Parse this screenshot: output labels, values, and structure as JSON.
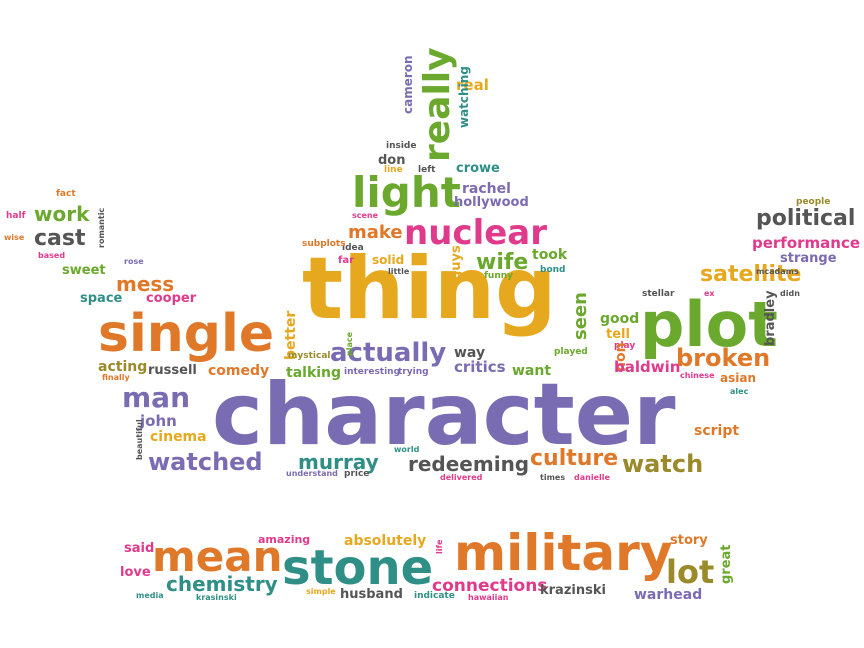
{
  "palette": {
    "purple": "#7a6cb2",
    "orange": "#e0782a",
    "green": "#6aa82e",
    "gold": "#e6a81e",
    "pink": "#e03a8c",
    "teal": "#2f8f86",
    "olive": "#9a8a2a",
    "grey": "#555555"
  },
  "words": [
    {
      "text": "character",
      "color": "purple"
    },
    {
      "text": "thing",
      "color": "gold"
    },
    {
      "text": "plot",
      "color": "green"
    },
    {
      "text": "single",
      "color": "orange"
    },
    {
      "text": "military",
      "color": "orange"
    },
    {
      "text": "stone",
      "color": "teal"
    },
    {
      "text": "mean",
      "color": "orange"
    },
    {
      "text": "light",
      "color": "green"
    },
    {
      "text": "nuclear",
      "color": "pink"
    },
    {
      "text": "really",
      "color": "green"
    },
    {
      "text": "political",
      "color": "grey"
    },
    {
      "text": "satellite",
      "color": "gold"
    },
    {
      "text": "performance",
      "color": "pink"
    },
    {
      "text": "broken",
      "color": "orange"
    },
    {
      "text": "actually",
      "color": "purple"
    },
    {
      "text": "watched",
      "color": "purple"
    },
    {
      "text": "watch",
      "color": "olive"
    },
    {
      "text": "culture",
      "color": "orange"
    },
    {
      "text": "redeeming",
      "color": "grey"
    },
    {
      "text": "murray",
      "color": "teal"
    },
    {
      "text": "man",
      "color": "purple"
    },
    {
      "text": "lot",
      "color": "olive"
    },
    {
      "text": "chemistry",
      "color": "teal"
    },
    {
      "text": "connections",
      "color": "pink"
    },
    {
      "text": "wife",
      "color": "green"
    },
    {
      "text": "make",
      "color": "orange"
    },
    {
      "text": "mess",
      "color": "orange"
    },
    {
      "text": "cast",
      "color": "grey"
    },
    {
      "text": "work",
      "color": "green"
    },
    {
      "text": "seen",
      "color": "green"
    },
    {
      "text": "better",
      "color": "gold"
    },
    {
      "text": "guys",
      "color": "gold"
    },
    {
      "text": "rachel",
      "color": "purple"
    },
    {
      "text": "hollywood",
      "color": "purple"
    },
    {
      "text": "crowe",
      "color": "teal"
    },
    {
      "text": "don",
      "color": "grey"
    },
    {
      "text": "real",
      "color": "gold"
    },
    {
      "text": "watching",
      "color": "teal"
    },
    {
      "text": "cameron",
      "color": "purple"
    },
    {
      "text": "left",
      "color": "grey"
    },
    {
      "text": "line",
      "color": "gold"
    },
    {
      "text": "inside",
      "color": "grey"
    },
    {
      "text": "scene",
      "color": "pink"
    },
    {
      "text": "idea",
      "color": "grey"
    },
    {
      "text": "subplots",
      "color": "orange"
    },
    {
      "text": "far",
      "color": "pink"
    },
    {
      "text": "solid",
      "color": "gold"
    },
    {
      "text": "little",
      "color": "grey"
    },
    {
      "text": "took",
      "color": "green"
    },
    {
      "text": "bond",
      "color": "teal"
    },
    {
      "text": "funny",
      "color": "green"
    },
    {
      "text": "place",
      "color": "green"
    },
    {
      "text": "fact",
      "color": "orange"
    },
    {
      "text": "half",
      "color": "pink"
    },
    {
      "text": "wise",
      "color": "orange"
    },
    {
      "text": "based",
      "color": "pink"
    },
    {
      "text": "romantic",
      "color": "grey"
    },
    {
      "text": "sweet",
      "color": "green"
    },
    {
      "text": "rose",
      "color": "purple"
    },
    {
      "text": "space",
      "color": "teal"
    },
    {
      "text": "cooper",
      "color": "pink"
    },
    {
      "text": "acting",
      "color": "olive"
    },
    {
      "text": "finally",
      "color": "orange"
    },
    {
      "text": "russell",
      "color": "grey"
    },
    {
      "text": "comedy",
      "color": "orange"
    },
    {
      "text": "mystical",
      "color": "olive"
    },
    {
      "text": "talking",
      "color": "green"
    },
    {
      "text": "interesting",
      "color": "purple"
    },
    {
      "text": "trying",
      "color": "purple"
    },
    {
      "text": "way",
      "color": "grey"
    },
    {
      "text": "critics",
      "color": "purple"
    },
    {
      "text": "want",
      "color": "green"
    },
    {
      "text": "played",
      "color": "green"
    },
    {
      "text": "good",
      "color": "green"
    },
    {
      "text": "tell",
      "color": "gold"
    },
    {
      "text": "play",
      "color": "pink"
    },
    {
      "text": "non",
      "color": "orange"
    },
    {
      "text": "baldwin",
      "color": "pink"
    },
    {
      "text": "chinese",
      "color": "pink"
    },
    {
      "text": "asian",
      "color": "orange"
    },
    {
      "text": "alec",
      "color": "teal"
    },
    {
      "text": "script",
      "color": "orange"
    },
    {
      "text": "stellar",
      "color": "grey"
    },
    {
      "text": "ex",
      "color": "pink"
    },
    {
      "text": "bradley",
      "color": "grey"
    },
    {
      "text": "didn",
      "color": "grey"
    },
    {
      "text": "strange",
      "color": "purple"
    },
    {
      "text": "mcadams",
      "color": "grey"
    },
    {
      "text": "people",
      "color": "olive"
    },
    {
      "text": "john",
      "color": "purple"
    },
    {
      "text": "cinema",
      "color": "gold"
    },
    {
      "text": "beautiful",
      "color": "grey"
    },
    {
      "text": "understand",
      "color": "purple"
    },
    {
      "text": "price",
      "color": "grey"
    },
    {
      "text": "world",
      "color": "teal"
    },
    {
      "text": "delivered",
      "color": "pink"
    },
    {
      "text": "times",
      "color": "grey"
    },
    {
      "text": "danielle",
      "color": "pink"
    },
    {
      "text": "said",
      "color": "pink"
    },
    {
      "text": "love",
      "color": "pink"
    },
    {
      "text": "amazing",
      "color": "pink"
    },
    {
      "text": "absolutely",
      "color": "gold"
    },
    {
      "text": "life",
      "color": "pink"
    },
    {
      "text": "story",
      "color": "orange"
    },
    {
      "text": "great",
      "color": "green"
    },
    {
      "text": "media",
      "color": "teal"
    },
    {
      "text": "krasinski",
      "color": "teal"
    },
    {
      "text": "simple",
      "color": "gold"
    },
    {
      "text": "husband",
      "color": "grey"
    },
    {
      "text": "indicate",
      "color": "teal"
    },
    {
      "text": "hawaiian",
      "color": "pink"
    },
    {
      "text": "krazinski",
      "color": "grey"
    },
    {
      "text": "warhead",
      "color": "purple"
    }
  ]
}
